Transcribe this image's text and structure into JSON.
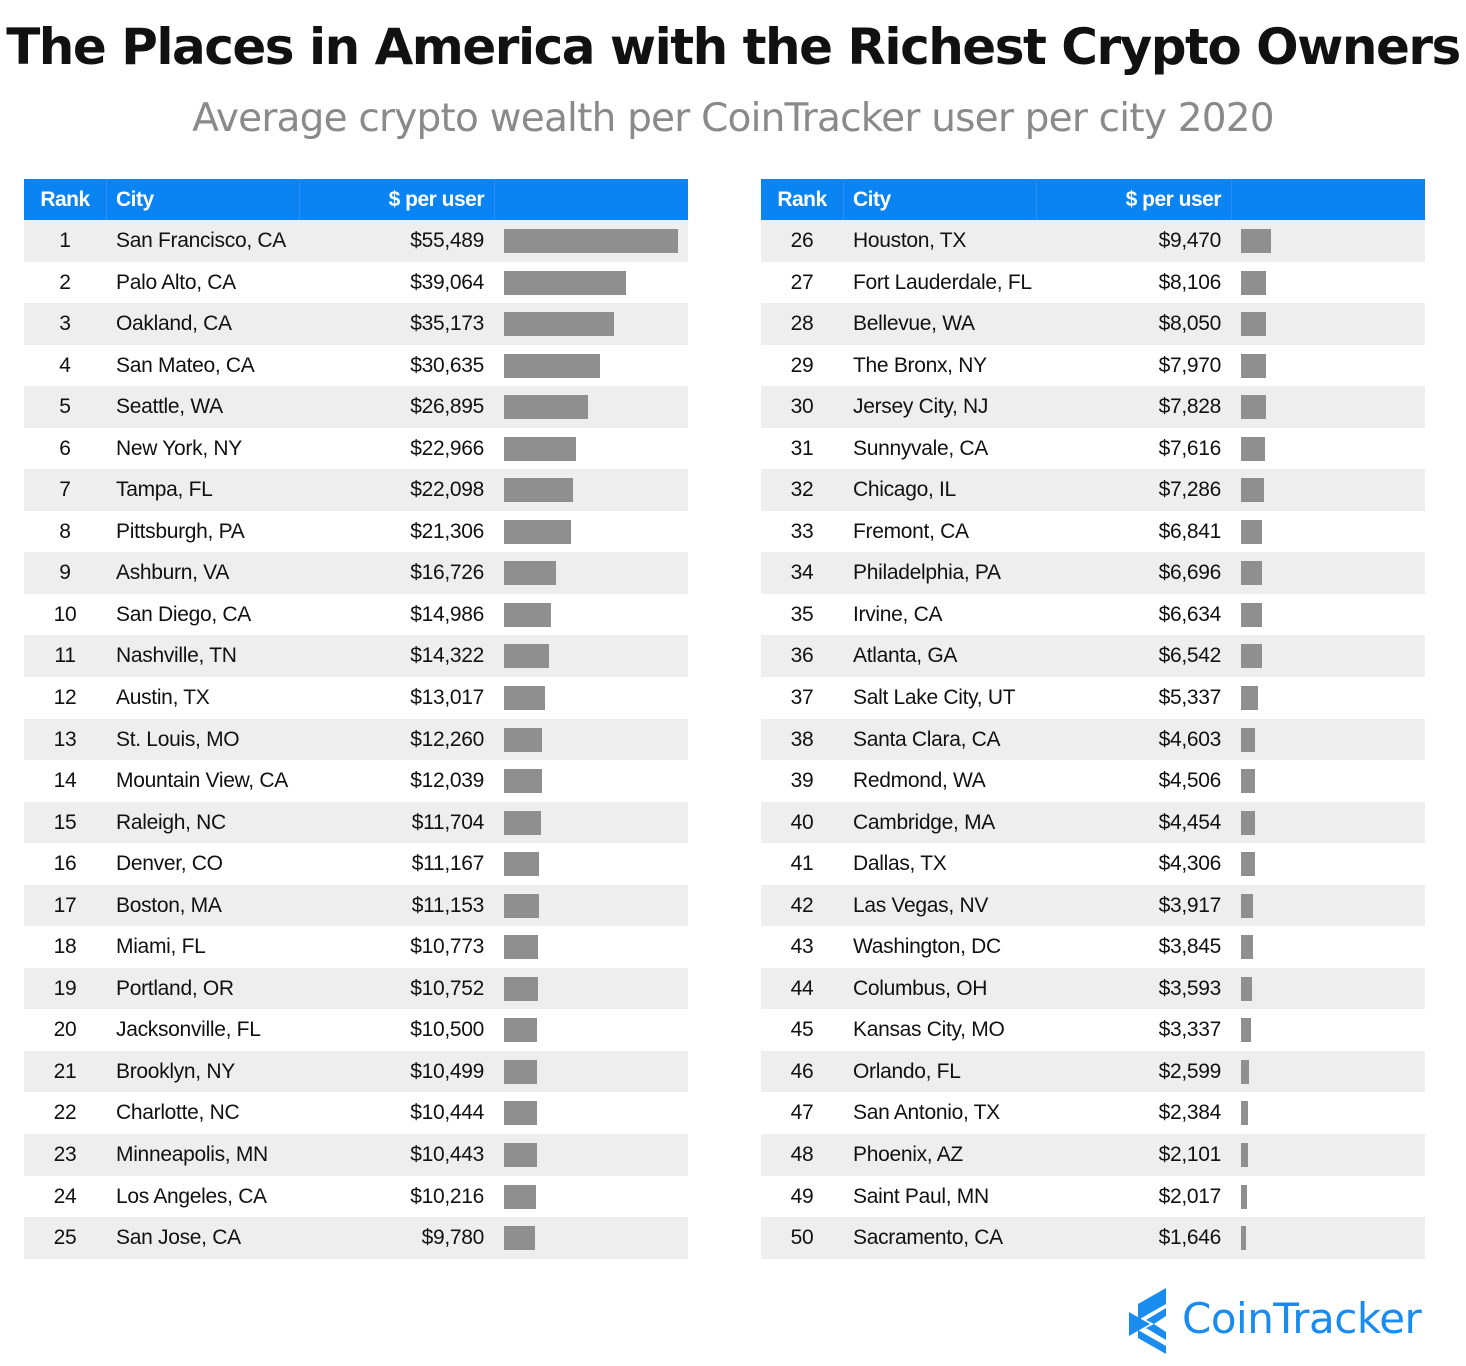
{
  "title": "The Places in America with the Richest Crypto Owners",
  "subtitle": "Average crypto wealth per CoinTracker user per city 2020",
  "headers": {
    "rank": "Rank",
    "city": "City",
    "value": "$ per user"
  },
  "brand": {
    "name": "CoinTracker",
    "color": "#1a8cf0"
  },
  "colors": {
    "header": "#0b84f3",
    "bar": "#8f8f8f",
    "row_alt": "#eeeeee"
  },
  "chart_data": {
    "type": "table",
    "columns": [
      "Rank",
      "City",
      "$ per user"
    ],
    "bar_max": 55489,
    "rows": [
      {
        "rank": "1",
        "city": "San Francisco, CA",
        "value": 55489,
        "label": "$55,489"
      },
      {
        "rank": "2",
        "city": "Palo Alto, CA",
        "value": 39064,
        "label": "$39,064"
      },
      {
        "rank": "3",
        "city": "Oakland, CA",
        "value": 35173,
        "label": "$35,173"
      },
      {
        "rank": "4",
        "city": "San Mateo, CA",
        "value": 30635,
        "label": "$30,635"
      },
      {
        "rank": "5",
        "city": "Seattle, WA",
        "value": 26895,
        "label": "$26,895"
      },
      {
        "rank": "6",
        "city": "New York, NY",
        "value": 22966,
        "label": "$22,966"
      },
      {
        "rank": "7",
        "city": "Tampa, FL",
        "value": 22098,
        "label": "$22,098"
      },
      {
        "rank": "8",
        "city": "Pittsburgh, PA",
        "value": 21306,
        "label": "$21,306"
      },
      {
        "rank": "9",
        "city": "Ashburn, VA",
        "value": 16726,
        "label": "$16,726"
      },
      {
        "rank": "10",
        "city": "San Diego, CA",
        "value": 14986,
        "label": "$14,986"
      },
      {
        "rank": "11",
        "city": "Nashville, TN",
        "value": 14322,
        "label": "$14,322"
      },
      {
        "rank": "12",
        "city": "Austin, TX",
        "value": 13017,
        "label": "$13,017"
      },
      {
        "rank": "13",
        "city": "St. Louis, MO",
        "value": 12260,
        "label": "$12,260"
      },
      {
        "rank": "14",
        "city": "Mountain View, CA",
        "value": 12039,
        "label": "$12,039"
      },
      {
        "rank": "15",
        "city": "Raleigh, NC",
        "value": 11704,
        "label": "$11,704"
      },
      {
        "rank": "16",
        "city": "Denver, CO",
        "value": 11167,
        "label": "$11,167"
      },
      {
        "rank": "17",
        "city": "Boston, MA",
        "value": 11153,
        "label": "$11,153"
      },
      {
        "rank": "18",
        "city": "Miami, FL",
        "value": 10773,
        "label": "$10,773"
      },
      {
        "rank": "19",
        "city": "Portland, OR",
        "value": 10752,
        "label": "$10,752"
      },
      {
        "rank": "20",
        "city": "Jacksonville, FL",
        "value": 10500,
        "label": "$10,500"
      },
      {
        "rank": "21",
        "city": "Brooklyn, NY",
        "value": 10499,
        "label": "$10,499"
      },
      {
        "rank": "22",
        "city": "Charlotte, NC",
        "value": 10444,
        "label": "$10,444"
      },
      {
        "rank": "23",
        "city": "Minneapolis, MN",
        "value": 10443,
        "label": "$10,443"
      },
      {
        "rank": "24",
        "city": "Los Angeles, CA",
        "value": 10216,
        "label": "$10,216"
      },
      {
        "rank": "25",
        "city": "San Jose, CA",
        "value": 9780,
        "label": "$9,780"
      },
      {
        "rank": "26",
        "city": "Houston, TX",
        "value": 9470,
        "label": "$9,470"
      },
      {
        "rank": "27",
        "city": "Fort Lauderdale, FL",
        "value": 8106,
        "label": "$8,106"
      },
      {
        "rank": "28",
        "city": "Bellevue, WA",
        "value": 8050,
        "label": "$8,050"
      },
      {
        "rank": "29",
        "city": "The Bronx, NY",
        "value": 7970,
        "label": "$7,970"
      },
      {
        "rank": "30",
        "city": "Jersey City, NJ",
        "value": 7828,
        "label": "$7,828"
      },
      {
        "rank": "31",
        "city": "Sunnyvale, CA",
        "value": 7616,
        "label": "$7,616"
      },
      {
        "rank": "32",
        "city": "Chicago, IL",
        "value": 7286,
        "label": "$7,286"
      },
      {
        "rank": "33",
        "city": "Fremont, CA",
        "value": 6841,
        "label": "$6,841"
      },
      {
        "rank": "34",
        "city": "Philadelphia, PA",
        "value": 6696,
        "label": "$6,696"
      },
      {
        "rank": "35",
        "city": "Irvine, CA",
        "value": 6634,
        "label": "$6,634"
      },
      {
        "rank": "36",
        "city": "Atlanta, GA",
        "value": 6542,
        "label": "$6,542"
      },
      {
        "rank": "37",
        "city": "Salt Lake City, UT",
        "value": 5337,
        "label": "$5,337"
      },
      {
        "rank": "38",
        "city": "Santa Clara, CA",
        "value": 4603,
        "label": "$4,603"
      },
      {
        "rank": "39",
        "city": "Redmond, WA",
        "value": 4506,
        "label": "$4,506"
      },
      {
        "rank": "40",
        "city": "Cambridge, MA",
        "value": 4454,
        "label": "$4,454"
      },
      {
        "rank": "41",
        "city": "Dallas, TX",
        "value": 4306,
        "label": "$4,306"
      },
      {
        "rank": "42",
        "city": "Las Vegas, NV",
        "value": 3917,
        "label": "$3,917"
      },
      {
        "rank": "43",
        "city": "Washington, DC",
        "value": 3845,
        "label": "$3,845"
      },
      {
        "rank": "44",
        "city": "Columbus, OH",
        "value": 3593,
        "label": "$3,593"
      },
      {
        "rank": "45",
        "city": "Kansas City, MO",
        "value": 3337,
        "label": "$3,337"
      },
      {
        "rank": "46",
        "city": "Orlando, FL",
        "value": 2599,
        "label": "$2,599"
      },
      {
        "rank": "47",
        "city": "San Antonio, TX",
        "value": 2384,
        "label": "$2,384"
      },
      {
        "rank": "48",
        "city": "Phoenix, AZ",
        "value": 2101,
        "label": "$2,101"
      },
      {
        "rank": "49",
        "city": "Saint Paul, MN",
        "value": 2017,
        "label": "$2,017"
      },
      {
        "rank": "50",
        "city": "Sacramento, CA",
        "value": 1646,
        "label": "$1,646"
      }
    ]
  }
}
